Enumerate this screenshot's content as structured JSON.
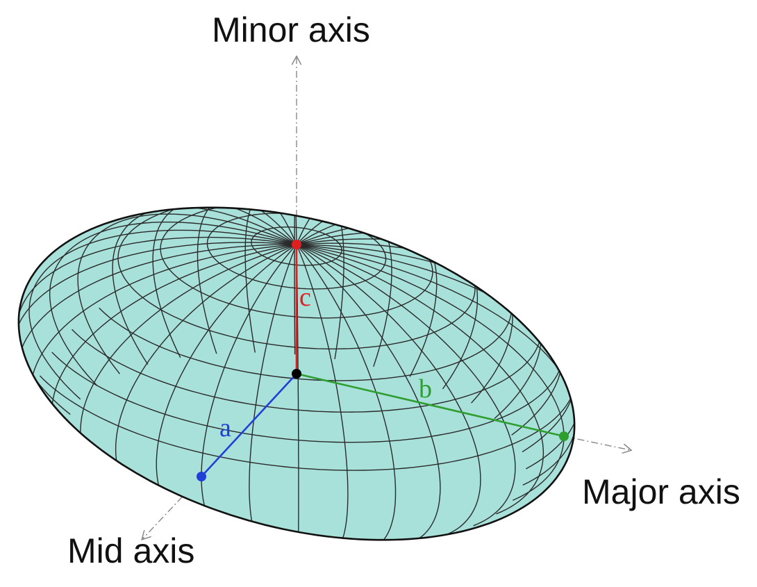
{
  "labels": {
    "minor_axis": "Minor axis",
    "major_axis": "Major axis",
    "mid_axis": "Mid axis",
    "a": "a",
    "b": "b",
    "c": "c"
  },
  "colors": {
    "surface": "#a8e0da",
    "grid": "#2a2a2a",
    "outline": "#111111",
    "a": "#1f3fd6",
    "b": "#2e9e2e",
    "c": "#e02020",
    "center": "#000000",
    "axis": "#888888"
  }
}
